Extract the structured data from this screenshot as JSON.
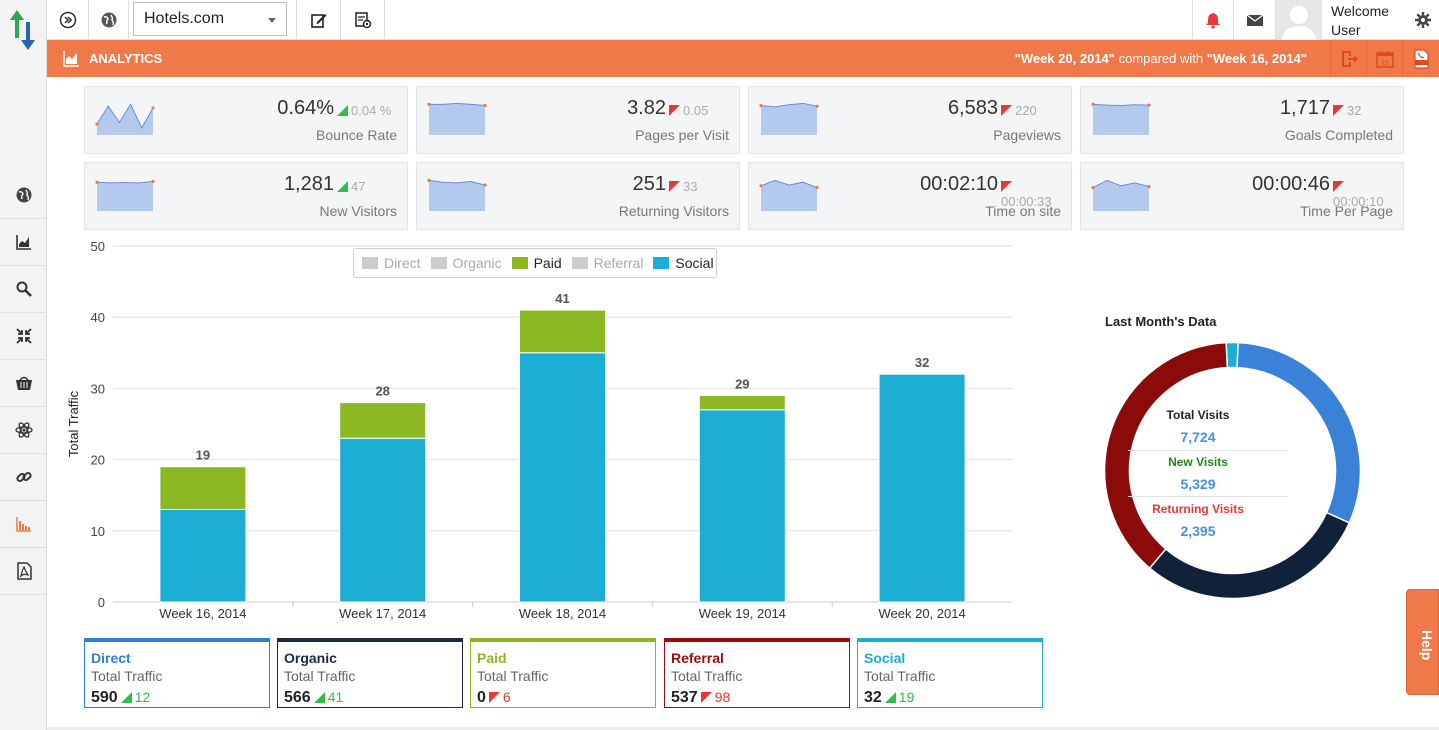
{
  "topbar": {
    "site_select_value": "Hotels.com",
    "welcome_line1": "Welcome",
    "welcome_line2": "User"
  },
  "header": {
    "title": "ANALYTICS",
    "compare_week_a": "\"Week 20, 2014\"",
    "compare_text": " compared with ",
    "compare_week_b": "\"Week 16, 2014\"",
    "calendar_day": "15"
  },
  "kpis": [
    {
      "value": "0.64%",
      "delta": "0.04 %",
      "trend": "up",
      "label": "Bounce Rate",
      "spark": [
        0.3,
        0.8,
        0.35,
        0.85,
        0.2,
        0.75
      ]
    },
    {
      "value": "3.82",
      "delta": "0.05",
      "trend": "down",
      "label": "Pages per Visit",
      "spark": [
        0.85,
        0.85,
        0.88,
        0.85,
        0.82
      ]
    },
    {
      "value": "6,583",
      "delta": "220",
      "trend": "down",
      "label": "Pageviews",
      "spark": [
        0.82,
        0.78,
        0.84,
        0.88,
        0.8
      ]
    },
    {
      "value": "1,717",
      "delta": "32",
      "trend": "down",
      "label": "Goals Completed",
      "spark": [
        0.85,
        0.83,
        0.82,
        0.84,
        0.83
      ]
    },
    {
      "value": "1,281",
      "delta": "47",
      "trend": "up",
      "label": "New Visitors",
      "spark": [
        0.8,
        0.78,
        0.79,
        0.78,
        0.82
      ]
    },
    {
      "value": "251",
      "delta": "33",
      "trend": "down",
      "label": "Returning Visitors",
      "spark": [
        0.85,
        0.8,
        0.78,
        0.82,
        0.72
      ]
    },
    {
      "value": "00:02:10",
      "delta": "00:00:33",
      "trend": "down",
      "label": "Time on site",
      "spark": [
        0.7,
        0.85,
        0.72,
        0.8,
        0.65
      ]
    },
    {
      "value": "00:00:46",
      "delta": "00:00:10",
      "trend": "down",
      "label": "Time Per Page",
      "spark": [
        0.65,
        0.85,
        0.7,
        0.78,
        0.68
      ]
    }
  ],
  "legend": [
    {
      "name": "Direct",
      "color": "#cccccc",
      "active": false
    },
    {
      "name": "Organic",
      "color": "#cccccc",
      "active": false
    },
    {
      "name": "Paid",
      "color": "#8ab722",
      "active": true
    },
    {
      "name": "Referral",
      "color": "#cccccc",
      "active": false
    },
    {
      "name": "Social",
      "color": "#1badd2",
      "active": true
    }
  ],
  "chart_data": {
    "type": "bar",
    "stacked": true,
    "categories": [
      "Week 16, 2014",
      "Week 17, 2014",
      "Week 18, 2014",
      "Week 19, 2014",
      "Week 20, 2014"
    ],
    "series": [
      {
        "name": "Social",
        "color": "#1badd2",
        "values": [
          13,
          23,
          35,
          27,
          32
        ]
      },
      {
        "name": "Paid",
        "color": "#8ab722",
        "values": [
          6,
          5,
          6,
          2,
          0
        ]
      }
    ],
    "totals": [
      19,
      28,
      41,
      29,
      32
    ],
    "ylabel": "Total Traffic",
    "ylim": [
      0,
      50
    ],
    "yticks": [
      0,
      10,
      20,
      30,
      40,
      50
    ],
    "grid": true,
    "legend_position": "top-center"
  },
  "donut": {
    "title": "Last Month's Data",
    "total_label": "Total Visits",
    "total_value": "7,724",
    "new_label": "New Visits",
    "new_value": "5,329",
    "returning_label": "Returning Visits",
    "returning_value": "2,395",
    "segments": [
      {
        "name": "Social",
        "value": 1.5,
        "color": "#1badd2"
      },
      {
        "name": "Direct",
        "value": 31,
        "color": "#3a82d8"
      },
      {
        "name": "Organic",
        "value": 29.5,
        "color": "#10223a"
      },
      {
        "name": "Referral",
        "value": 38,
        "color": "#8b0a0a"
      }
    ]
  },
  "cards": [
    {
      "title": "Direct",
      "subtitle": "Total Traffic",
      "value": "590",
      "delta": "12",
      "trend": "up",
      "color": "#2f7fd6"
    },
    {
      "title": "Organic",
      "subtitle": "Total Traffic",
      "value": "566",
      "delta": "41",
      "trend": "up",
      "color": "#1c2a3f"
    },
    {
      "title": "Paid",
      "subtitle": "Total Traffic",
      "value": "0",
      "delta": "6",
      "trend": "down",
      "color": "#8ab722"
    },
    {
      "title": "Referral",
      "subtitle": "Total Traffic",
      "value": "537",
      "delta": "98",
      "trend": "down",
      "color": "#9b0d0d"
    },
    {
      "title": "Social",
      "subtitle": "Total Traffic",
      "value": "32",
      "delta": "19",
      "trend": "up",
      "color": "#1badd2"
    }
  ],
  "help_label": "Help"
}
